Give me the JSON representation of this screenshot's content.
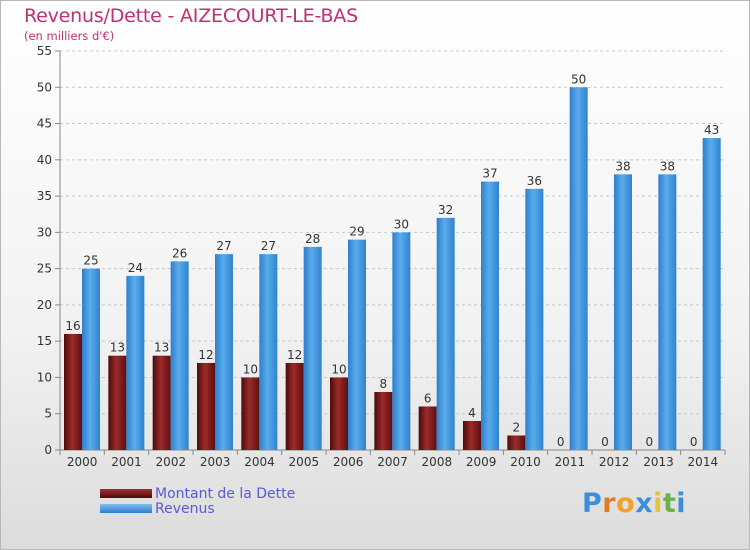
{
  "chart_data": {
    "type": "bar",
    "title": "Revenus/Dette - AIZECOURT-LE-BAS",
    "subtitle": "(en milliers d'€)",
    "categories": [
      "2000",
      "2001",
      "2002",
      "2003",
      "2004",
      "2005",
      "2006",
      "2007",
      "2008",
      "2009",
      "2010",
      "2011",
      "2012",
      "2013",
      "2014"
    ],
    "series": [
      {
        "name": "Montant de la Dette",
        "color": "#7d1a1a",
        "values": [
          16,
          13,
          13,
          12,
          10,
          12,
          10,
          8,
          6,
          4,
          2,
          0,
          0,
          0,
          0
        ]
      },
      {
        "name": "Revenus",
        "color": "#3f96e0",
        "values": [
          25,
          24,
          26,
          27,
          27,
          28,
          29,
          30,
          32,
          37,
          36,
          50,
          38,
          38,
          43
        ]
      }
    ],
    "ylim": [
      0,
      55
    ],
    "yticks": [
      0,
      5,
      10,
      15,
      20,
      25,
      30,
      35,
      40,
      45,
      50,
      55
    ],
    "grid": true,
    "legend": "bottom-left"
  },
  "legend": {
    "items": [
      {
        "label": "Montant de la Dette",
        "color": "#7d1a1a"
      },
      {
        "label": "Revenus",
        "color": "#3f96e0"
      }
    ]
  },
  "logo": {
    "p": "P",
    "r": "r",
    "o": "o",
    "x": "x",
    "i1": "i",
    "t": "t",
    "i2": "i"
  }
}
